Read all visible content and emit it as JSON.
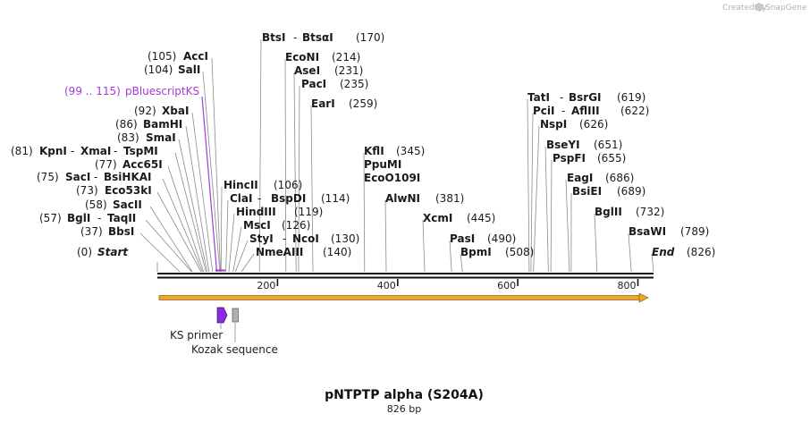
{
  "credit": "Created by",
  "brand": "SnapGene",
  "brand_icon": "snapgene-logo-icon",
  "title": "pNTPTP alpha (S204A)",
  "subtitle": "826 bp",
  "total_bp": 826,
  "ticks": [
    {
      "label": "200",
      "value": 200
    },
    {
      "label": "400",
      "value": 400
    },
    {
      "label": "600",
      "value": 600
    },
    {
      "label": "800",
      "value": 800
    }
  ],
  "colors": {
    "backbone": "#111111",
    "orf": "#f2a628",
    "primer": "#8a2be2",
    "kozak": "#b0b0b8",
    "highlight": "#a23bd6"
  },
  "sites": [
    {
      "slug": "start",
      "parts": [
        {
          "t": "(0)"
        },
        {
          "t": "Start",
          "c": "it"
        }
      ]
    },
    {
      "slug": "bbsi",
      "parts": [
        {
          "t": "(37)"
        },
        {
          "t": "BbsI",
          "c": "nm"
        }
      ]
    },
    {
      "slug": "bgli",
      "parts": [
        {
          "t": "(57)"
        },
        {
          "t": "BglI",
          "c": "nm"
        },
        {
          "t": " - "
        },
        {
          "t": "TaqII",
          "c": "nm"
        }
      ]
    },
    {
      "slug": "sacii",
      "parts": [
        {
          "t": "(58)"
        },
        {
          "t": "SacII",
          "c": "nm"
        }
      ]
    },
    {
      "slug": "eco53ki",
      "parts": [
        {
          "t": "(73)"
        },
        {
          "t": "Eco53kI",
          "c": "nm"
        }
      ]
    },
    {
      "slug": "saci",
      "parts": [
        {
          "t": "(75)"
        },
        {
          "t": "SacI",
          "c": "nm"
        },
        {
          "t": " - "
        },
        {
          "t": "BsiHKAI",
          "c": "nm"
        }
      ]
    },
    {
      "slug": "acc65i",
      "parts": [
        {
          "t": "(77)"
        },
        {
          "t": "Acc65I",
          "c": "nm"
        }
      ]
    },
    {
      "slug": "kpni",
      "parts": [
        {
          "t": "(81)"
        },
        {
          "t": "KpnI",
          "c": "nm"
        },
        {
          "t": " - "
        },
        {
          "t": "XmaI",
          "c": "nm"
        },
        {
          "t": " - "
        },
        {
          "t": "TspMI",
          "c": "nm"
        }
      ]
    },
    {
      "slug": "smai",
      "parts": [
        {
          "t": "(83)"
        },
        {
          "t": "SmaI",
          "c": "nm"
        }
      ]
    },
    {
      "slug": "bamhi",
      "parts": [
        {
          "t": "(86)"
        },
        {
          "t": "BamHI",
          "c": "nm"
        }
      ]
    },
    {
      "slug": "xbai",
      "parts": [
        {
          "t": "(92)"
        },
        {
          "t": "XbaI",
          "c": "nm"
        }
      ]
    },
    {
      "slug": "pbluescriptks",
      "parts": [
        {
          "t": "(99 .. 115)",
          "c": "purple"
        },
        {
          "t": "pBluescriptKS",
          "c": "purple"
        }
      ]
    },
    {
      "slug": "sali",
      "parts": [
        {
          "t": "(104)"
        },
        {
          "t": "SalI",
          "c": "nm"
        }
      ]
    },
    {
      "slug": "acci",
      "parts": [
        {
          "t": "(105)"
        },
        {
          "t": "AccI",
          "c": "nm"
        }
      ]
    },
    {
      "slug": "hincii",
      "parts": [
        {
          "t": "HincII",
          "c": "nm"
        },
        {
          "t": "(106)"
        }
      ]
    },
    {
      "slug": "clai",
      "parts": [
        {
          "t": "ClaI",
          "c": "nm"
        },
        {
          "t": " - "
        },
        {
          "t": "BspDI",
          "c": "nm"
        },
        {
          "t": "(114)"
        }
      ]
    },
    {
      "slug": "hindiii",
      "parts": [
        {
          "t": "HindIII",
          "c": "nm"
        },
        {
          "t": "(119)"
        }
      ]
    },
    {
      "slug": "msci",
      "parts": [
        {
          "t": "MscI",
          "c": "nm"
        },
        {
          "t": "(126)"
        }
      ]
    },
    {
      "slug": "styi",
      "parts": [
        {
          "t": "StyI",
          "c": "nm"
        },
        {
          "t": " - "
        },
        {
          "t": "NcoI",
          "c": "nm"
        },
        {
          "t": "(130)"
        }
      ]
    },
    {
      "slug": "nmeaiii",
      "parts": [
        {
          "t": "NmeAIII",
          "c": "nm"
        },
        {
          "t": "(140)"
        }
      ]
    },
    {
      "slug": "btsi",
      "parts": [
        {
          "t": "BtsI",
          "c": "nm"
        },
        {
          "t": " - "
        },
        {
          "t": "BtsαI",
          "c": "nm"
        },
        {
          "t": "(170)"
        }
      ]
    },
    {
      "slug": "econi",
      "parts": [
        {
          "t": "EcoNI",
          "c": "nm"
        },
        {
          "t": "(214)"
        }
      ]
    },
    {
      "slug": "asei",
      "parts": [
        {
          "t": "AseI",
          "c": "nm"
        },
        {
          "t": "(231)"
        }
      ]
    },
    {
      "slug": "paci",
      "parts": [
        {
          "t": "PacI",
          "c": "nm"
        },
        {
          "t": "(235)"
        }
      ]
    },
    {
      "slug": "eari",
      "parts": [
        {
          "t": "EarI",
          "c": "nm"
        },
        {
          "t": "(259)"
        }
      ]
    },
    {
      "slug": "kfli",
      "parts": [
        {
          "t": "KflI",
          "c": "nm"
        },
        {
          "t": "(345)"
        }
      ]
    },
    {
      "slug": "ppumi",
      "parts": [
        {
          "t": "PpuMI",
          "c": "nm"
        }
      ]
    },
    {
      "slug": "ecoo109i",
      "parts": [
        {
          "t": "EcoO109I",
          "c": "nm"
        }
      ]
    },
    {
      "slug": "alwni",
      "parts": [
        {
          "t": "AlwNI",
          "c": "nm"
        },
        {
          "t": "(381)"
        }
      ]
    },
    {
      "slug": "xcmi",
      "parts": [
        {
          "t": "XcmI",
          "c": "nm"
        },
        {
          "t": "(445)"
        }
      ]
    },
    {
      "slug": "pasi",
      "parts": [
        {
          "t": "PasI",
          "c": "nm"
        },
        {
          "t": "(490)"
        }
      ]
    },
    {
      "slug": "bpmi",
      "parts": [
        {
          "t": "BpmI",
          "c": "nm"
        },
        {
          "t": "(508)"
        }
      ]
    },
    {
      "slug": "tati",
      "parts": [
        {
          "t": "TatI",
          "c": "nm"
        },
        {
          "t": " - "
        },
        {
          "t": "BsrGI",
          "c": "nm"
        },
        {
          "t": "(619)"
        }
      ]
    },
    {
      "slug": "pcii",
      "parts": [
        {
          "t": "PciI",
          "c": "nm"
        },
        {
          "t": " - "
        },
        {
          "t": "AflIII",
          "c": "nm"
        },
        {
          "t": "(622)"
        }
      ]
    },
    {
      "slug": "nspi",
      "parts": [
        {
          "t": "NspI",
          "c": "nm"
        },
        {
          "t": "(626)"
        }
      ]
    },
    {
      "slug": "bseyi",
      "parts": [
        {
          "t": "BseYI",
          "c": "nm"
        },
        {
          "t": "(651)"
        }
      ]
    },
    {
      "slug": "pspfi",
      "parts": [
        {
          "t": "PspFI",
          "c": "nm"
        },
        {
          "t": "(655)"
        }
      ]
    },
    {
      "slug": "eagi",
      "parts": [
        {
          "t": "EagI",
          "c": "nm"
        },
        {
          "t": "(686)"
        }
      ]
    },
    {
      "slug": "bsiei",
      "parts": [
        {
          "t": "BsiEI",
          "c": "nm"
        },
        {
          "t": "(689)"
        }
      ]
    },
    {
      "slug": "bglii",
      "parts": [
        {
          "t": "BglII",
          "c": "nm"
        },
        {
          "t": "(732)"
        }
      ]
    },
    {
      "slug": "bsawi",
      "parts": [
        {
          "t": "BsaWI",
          "c": "nm"
        },
        {
          "t": "(789)"
        }
      ]
    },
    {
      "slug": "end",
      "parts": [
        {
          "t": "End",
          "c": "it"
        },
        {
          "t": "(826)"
        }
      ]
    }
  ],
  "features": {
    "primer_label": "KS primer",
    "kozak_label": "Kozak sequence"
  }
}
